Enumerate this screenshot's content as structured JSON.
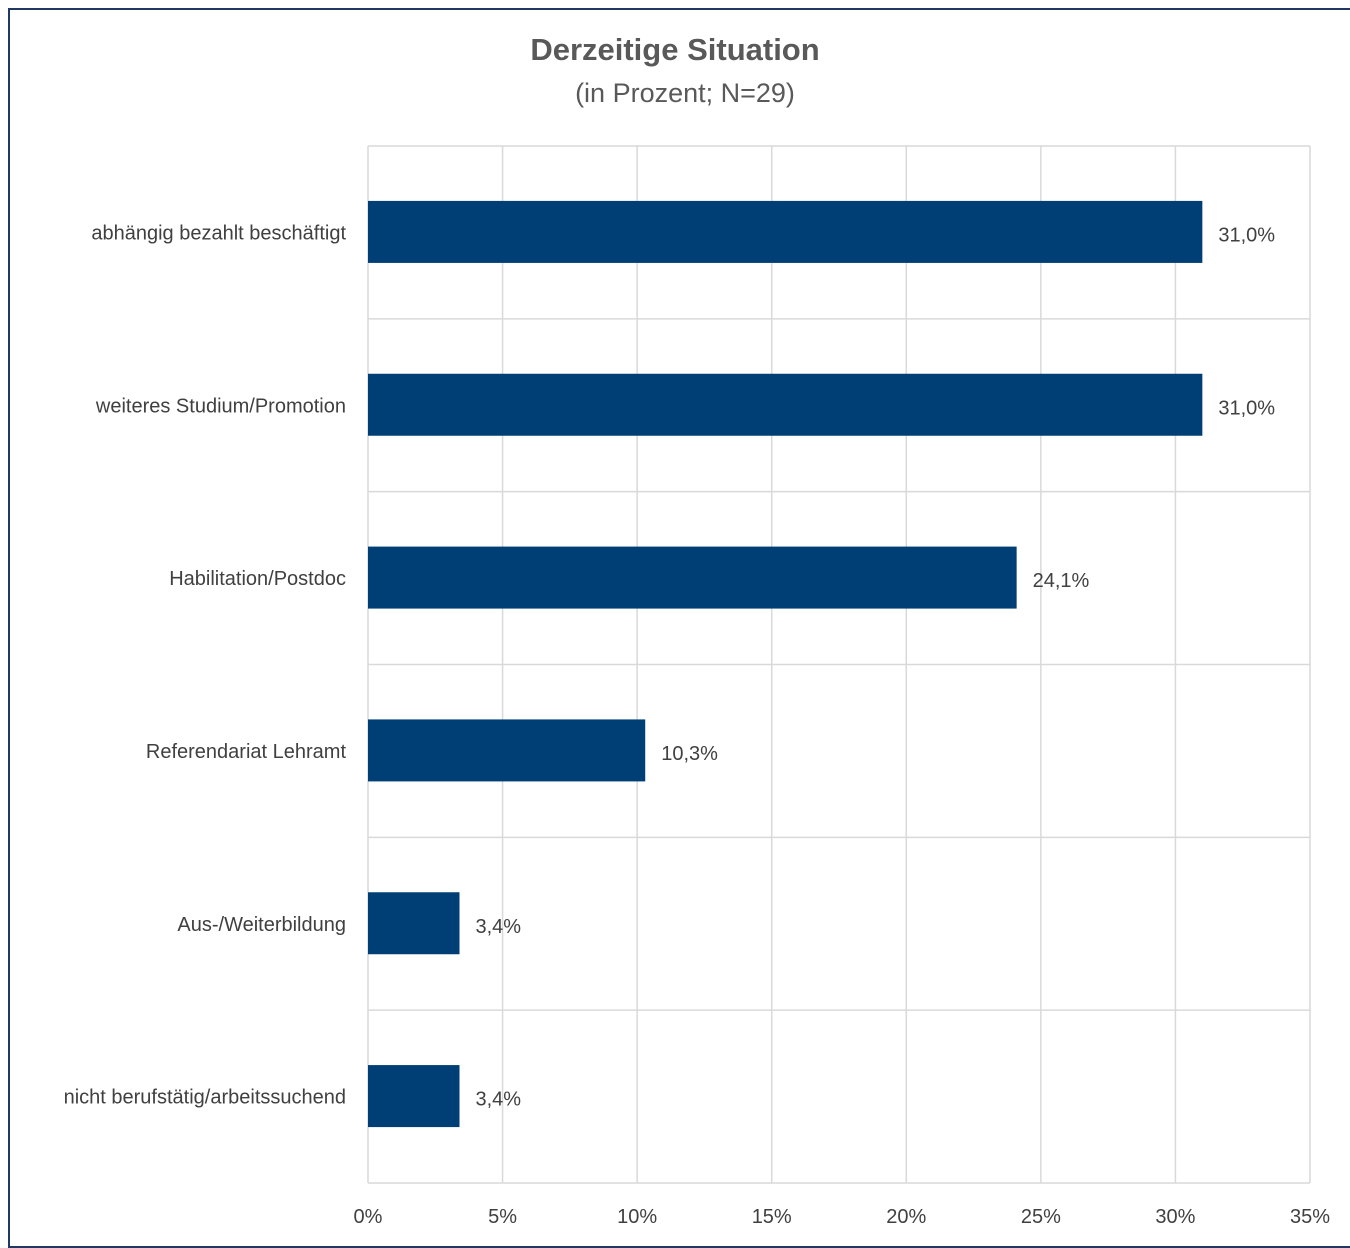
{
  "chart_data": {
    "type": "bar",
    "orientation": "horizontal",
    "title": "Derzeitige Situation",
    "subtitle": "(in Prozent; N=29)",
    "categories": [
      "abhängig bezahlt beschäftigt",
      "weiteres Studium/Promotion",
      "Habilitation/Postdoc",
      "Referendariat Lehramt",
      "Aus-/Weiterbildung",
      "nicht berufstätig/arbeitssuchend"
    ],
    "values": [
      31.0,
      31.0,
      24.1,
      10.3,
      3.4,
      3.4
    ],
    "value_labels": [
      "31,0%",
      "31,0%",
      "24,1%",
      "10,3%",
      "3,4%",
      "3,4%"
    ],
    "xlim": [
      0,
      35
    ],
    "xticks": [
      0,
      5,
      10,
      15,
      20,
      25,
      30,
      35
    ],
    "xtick_labels": [
      "0%",
      "5%",
      "10%",
      "15%",
      "20%",
      "25%",
      "30%",
      "35%"
    ],
    "grid": true,
    "legend": "none",
    "colors": {
      "bar": "#003f75",
      "grid": "#d9d9d9",
      "border": "#1f3864",
      "text": "#404040",
      "title": "#595959"
    }
  }
}
